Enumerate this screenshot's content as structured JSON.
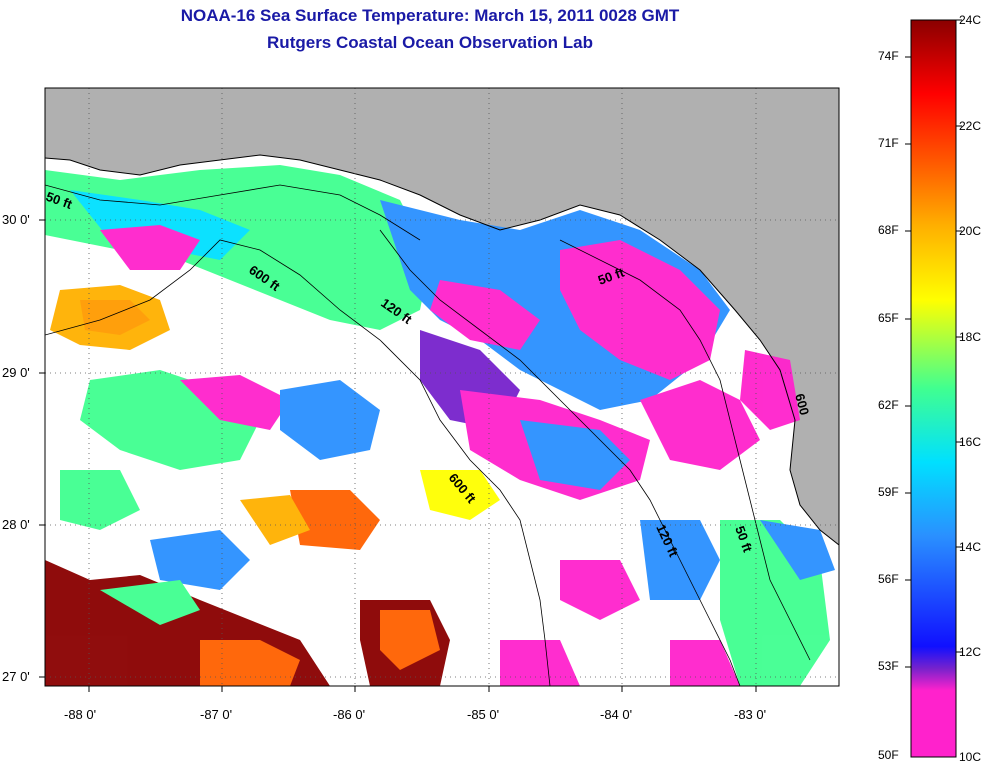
{
  "title": "NOAA-16 Sea Surface Temperature:  March 15, 2011 0028 GMT",
  "subtitle": "Rutgers Coastal Ocean Observation Lab",
  "x_ticks": [
    "-88 0'",
    "-87 0'",
    "-86 0'",
    "-85 0'",
    "-84 0'",
    "-83 0'"
  ],
  "y_ticks": [
    "30 0'",
    "29 0'",
    "28 0'",
    "27 0'"
  ],
  "contour_labels": [
    "50 ft",
    "600 ft",
    "120 ft",
    "50 ft",
    "600 ft",
    "120 ft",
    "50 ft",
    "600"
  ],
  "colorbar": {
    "fahrenheit_labels": [
      "74F",
      "71F",
      "68F",
      "65F",
      "62F",
      "59F",
      "56F",
      "53F",
      "50F"
    ],
    "celsius_labels": [
      "24C",
      "22C",
      "20C",
      "18C",
      "16C",
      "14C",
      "12C",
      "10C"
    ],
    "colors": [
      "#ff22cc",
      "#7722cc",
      "#1010ff",
      "#2a90ff",
      "#00e0ff",
      "#40ff90",
      "#ffff00",
      "#ffb000",
      "#ff6000",
      "#ff0000",
      "#8a0000"
    ]
  },
  "colors": {
    "land": "#b0b0b0",
    "no_data": "#ffffff",
    "title_text": "#1a1aa6"
  }
}
